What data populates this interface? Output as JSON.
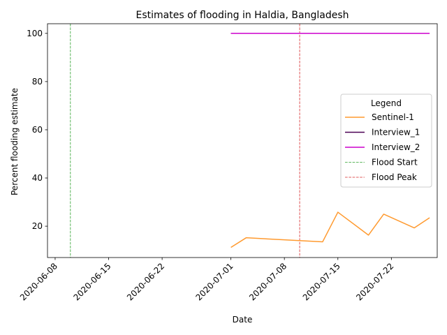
{
  "chart_data": {
    "type": "line",
    "title": "Estimates of flooding in Haldia, Bangladesh",
    "xlabel": "Date",
    "ylabel": "Percent flooding estimate",
    "xlim": [
      "2020-06-07",
      "2020-07-28"
    ],
    "ylim": [
      7,
      104
    ],
    "x_ticks": [
      "2020-06-08",
      "2020-06-15",
      "2020-06-22",
      "2020-07-01",
      "2020-07-08",
      "2020-07-15",
      "2020-07-22"
    ],
    "y_ticks": [
      20,
      40,
      60,
      80,
      100
    ],
    "grid": false,
    "legend": {
      "title": "Legend",
      "position": "center-right"
    },
    "series": [
      {
        "name": "Sentinel-1",
        "color": "#ff9a2f",
        "style": "solid",
        "points": [
          [
            "2020-07-01",
            11.2
          ],
          [
            "2020-07-03",
            15.2
          ],
          [
            "2020-07-13",
            13.5
          ],
          [
            "2020-07-15",
            25.8
          ],
          [
            "2020-07-19",
            16.3
          ],
          [
            "2020-07-21",
            25.0
          ],
          [
            "2020-07-25",
            19.3
          ],
          [
            "2020-07-27",
            23.5
          ]
        ]
      },
      {
        "name": "Interview_1",
        "color": "#4b0055",
        "style": "solid",
        "points": [
          [
            "2020-07-01",
            100
          ],
          [
            "2020-07-27",
            100
          ]
        ]
      },
      {
        "name": "Interview_2",
        "color": "#cc00cc",
        "style": "solid",
        "points": [
          [
            "2020-07-01",
            100
          ],
          [
            "2020-07-27",
            100
          ]
        ]
      }
    ],
    "vlines": [
      {
        "name": "Flood Start",
        "date": "2020-06-10",
        "color": "#2ca02c",
        "style": "dashed"
      },
      {
        "name": "Flood Peak",
        "date": "2020-07-10",
        "color": "#d62728",
        "style": "dashed"
      }
    ]
  }
}
